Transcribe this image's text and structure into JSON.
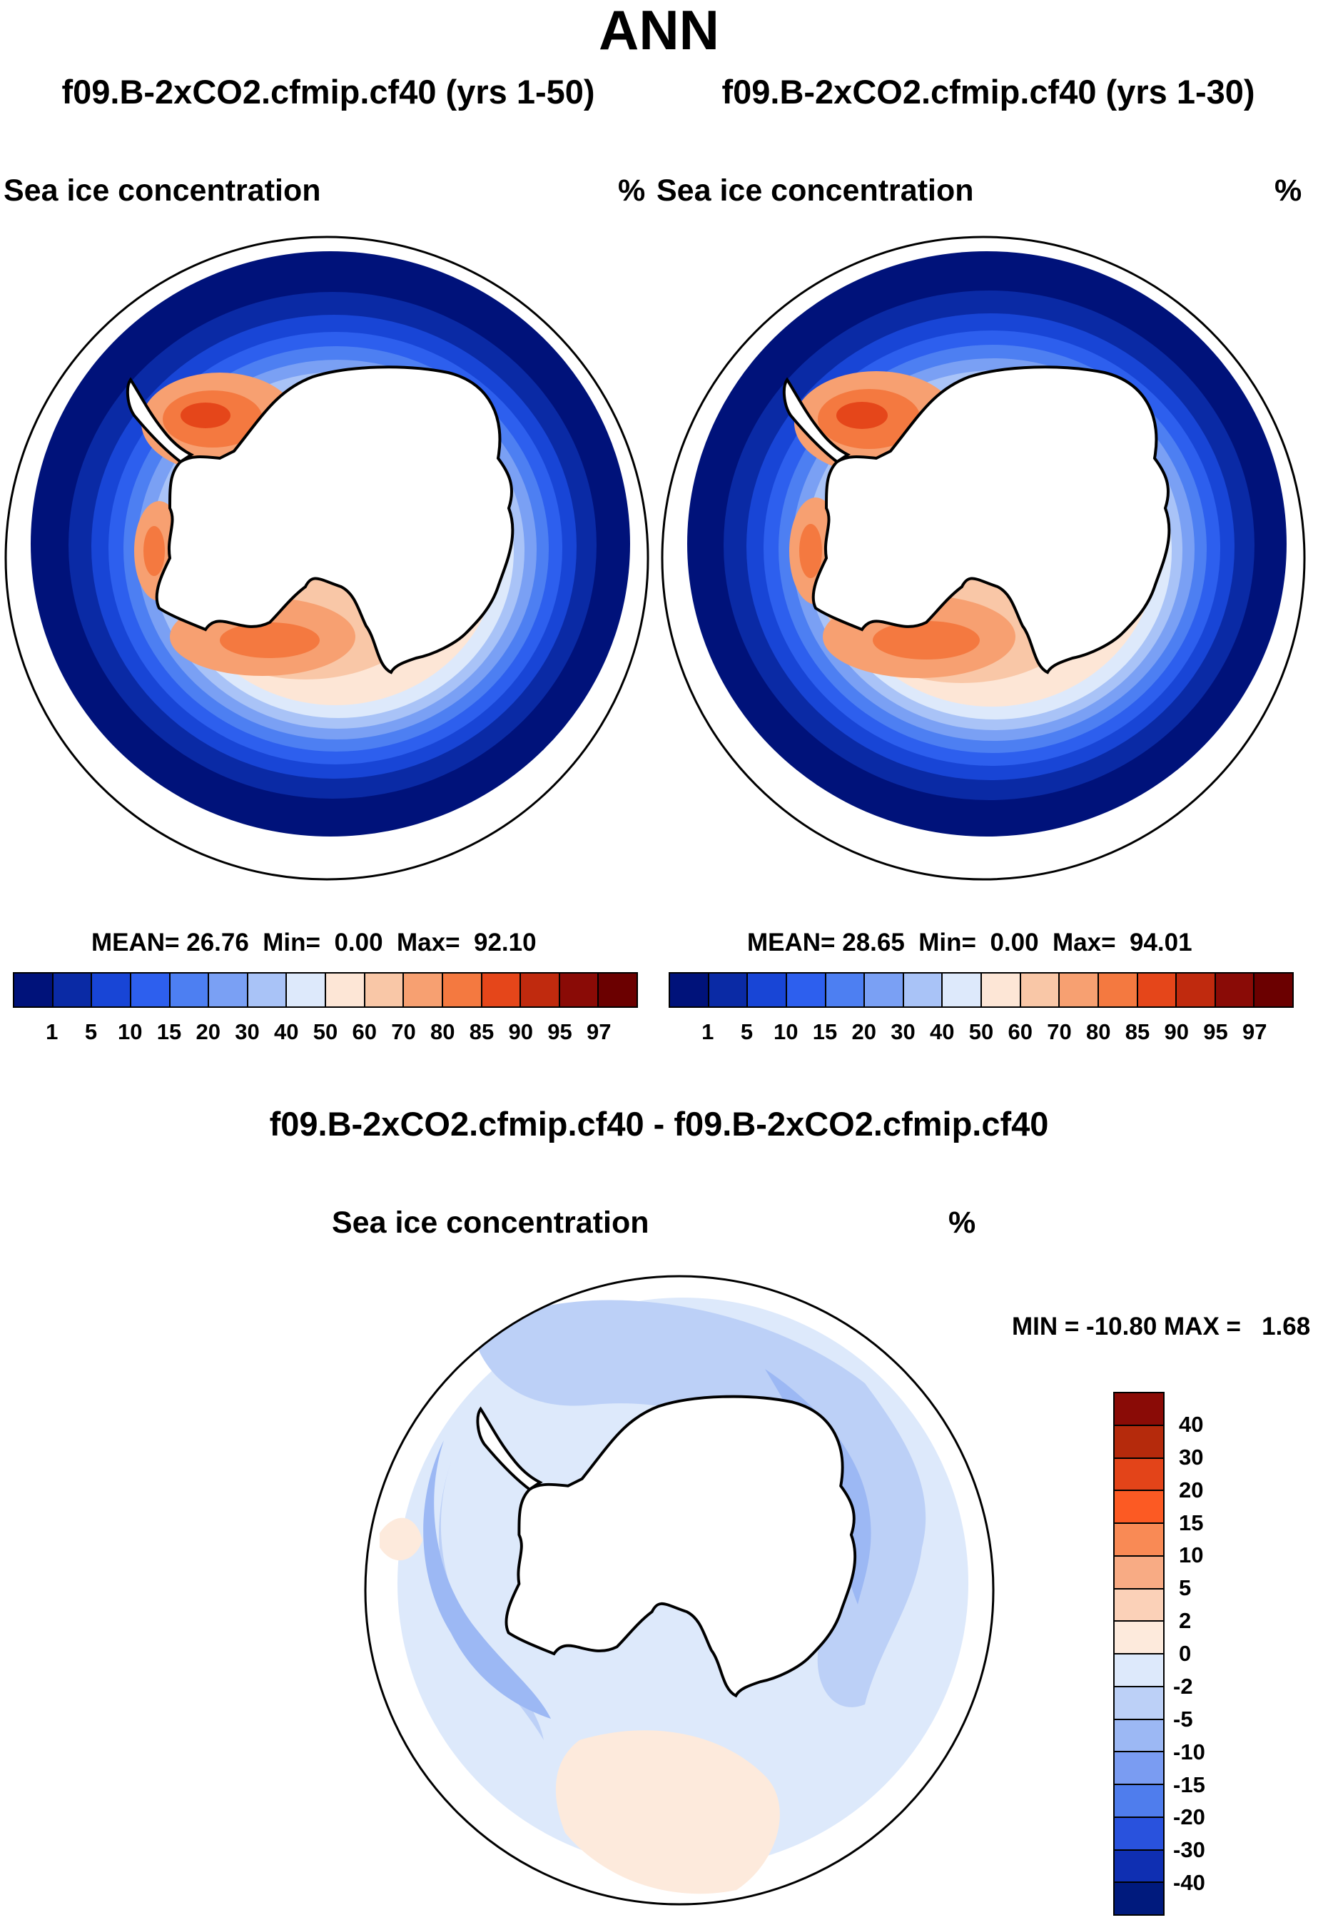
{
  "title": "ANN",
  "panels": [
    {
      "case": "f09.B-2xCO2.cfmip.cf40 (yrs 1-50)",
      "variable": "Sea ice concentration",
      "units": "%",
      "stats": {
        "mean_label": "MEAN=",
        "mean": "26.76",
        "min_label": "Min=",
        "min": "0.00",
        "max_label": "Max=",
        "max": "92.10"
      }
    },
    {
      "case": "f09.B-2xCO2.cfmip.cf40 (yrs 1-30)",
      "variable": "Sea ice concentration",
      "units": "%",
      "stats": {
        "mean_label": "MEAN=",
        "mean": "28.65",
        "min_label": "Min=",
        "min": "0.00",
        "max_label": "Max=",
        "max": "94.01"
      }
    }
  ],
  "difference": {
    "case": "f09.B-2xCO2.cfmip.cf40 - f09.B-2xCO2.cfmip.cf40",
    "variable": "Sea ice concentration",
    "units": "%",
    "stats": "MIN = -10.80 MAX =   1.68",
    "min": -10.8,
    "max": 1.68
  },
  "colorbar_abs": {
    "levels": [
      "1",
      "5",
      "10",
      "15",
      "20",
      "30",
      "40",
      "50",
      "60",
      "70",
      "80",
      "85",
      "90",
      "95",
      "97"
    ],
    "colors": [
      "#00127a",
      "#0a2aa5",
      "#1845d6",
      "#2d5fee",
      "#4d7ff2",
      "#7aa0f4",
      "#a9c3f7",
      "#dde9fb",
      "#fde6d6",
      "#f9c7a7",
      "#f7a071",
      "#f47940",
      "#e5461a",
      "#c02a0e",
      "#8a0b06",
      "#6b0000"
    ]
  },
  "colorbar_diff": {
    "levels": [
      "40",
      "30",
      "20",
      "15",
      "10",
      "5",
      "2",
      "0",
      "-2",
      "-5",
      "-10",
      "-15",
      "-20",
      "-30",
      "-40"
    ],
    "colors": [
      "#8a0b06",
      "#b52a0c",
      "#e34419",
      "#fc5a23",
      "#f98a55",
      "#f8ab84",
      "#fbd1b8",
      "#fdeadc",
      "#dde9fb",
      "#bcd0f7",
      "#9cb8f4",
      "#7a9cf2",
      "#4f7ded",
      "#2952dd",
      "#0f2fb2",
      "#001a7d"
    ]
  }
}
